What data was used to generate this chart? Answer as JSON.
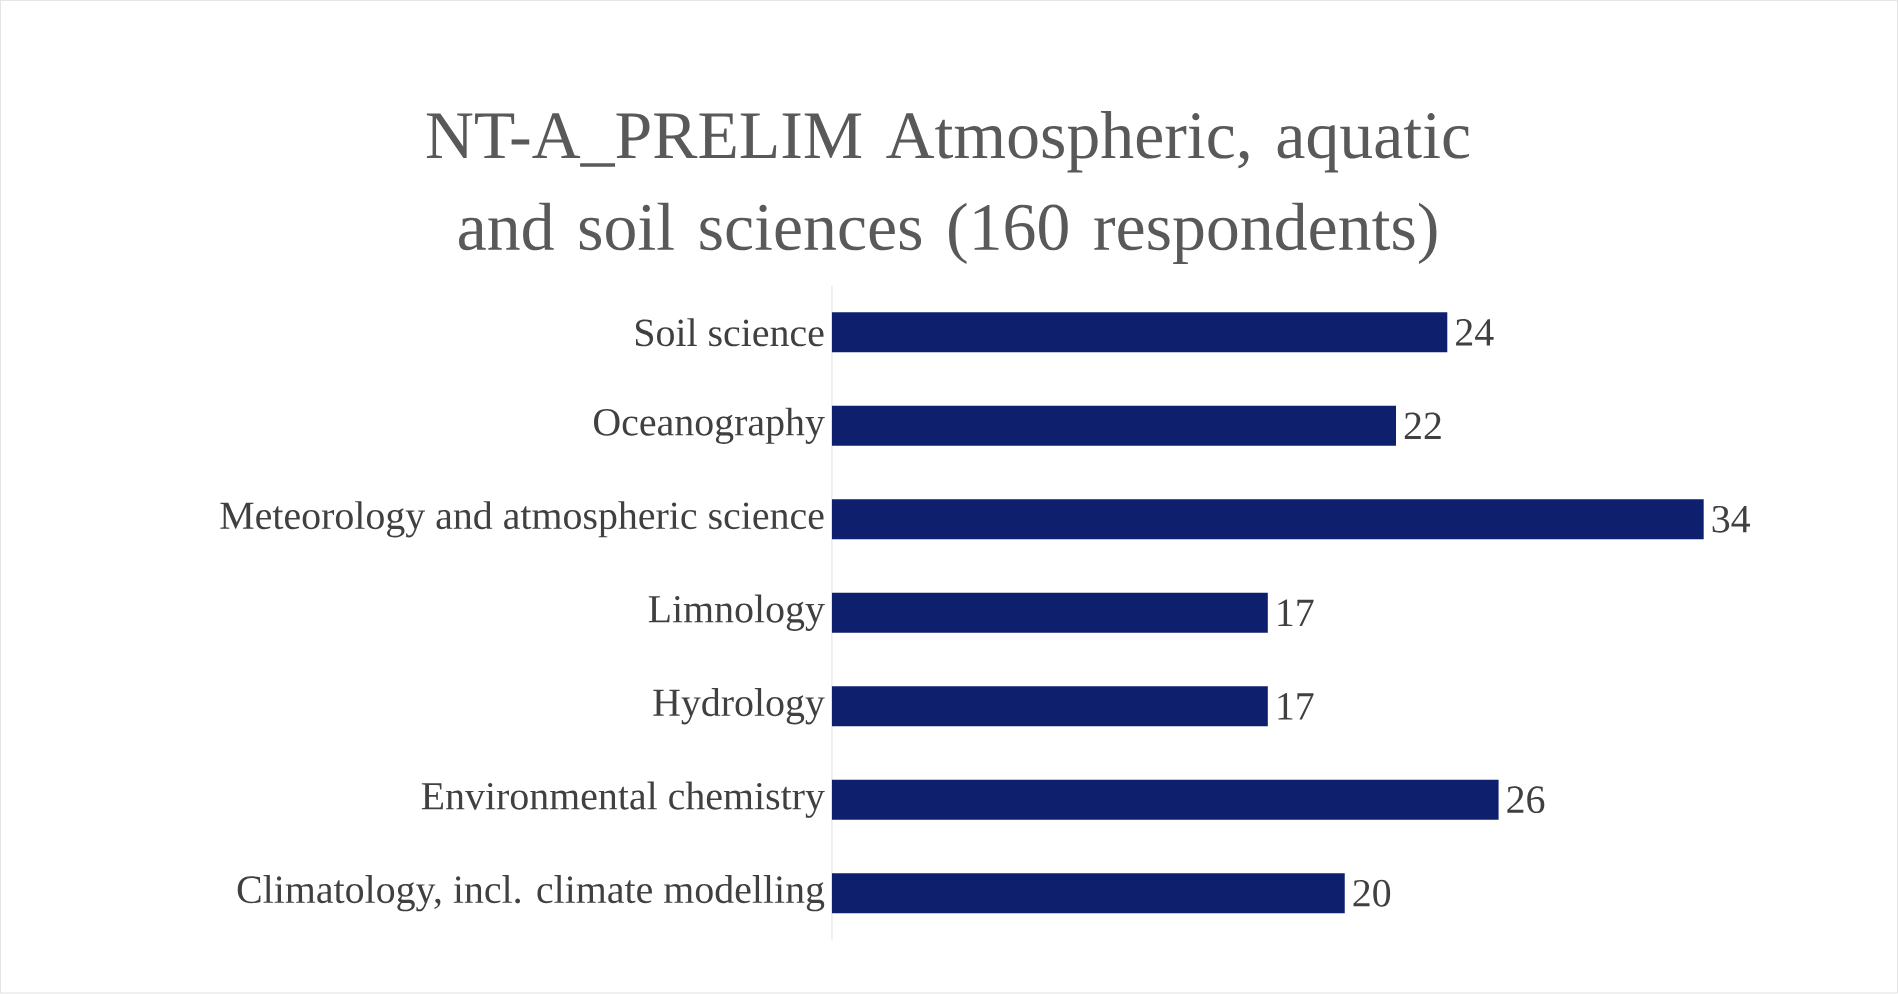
{
  "chart_data": {
    "type": "bar",
    "orientation": "horizontal",
    "title": "NT-A_PRELIM Atmospheric, aquatic and soil sciences (160 respondents)",
    "categories": [
      "Soil science",
      "Oceanography",
      "Meteorology and atmospheric science",
      "Limnology",
      "Hydrology",
      "Environmental chemistry",
      "Climatology, incl. climate modelling"
    ],
    "values": [
      24,
      22,
      34,
      17,
      17,
      26,
      20
    ],
    "color": "#0e1f6e",
    "data_labels": true
  }
}
